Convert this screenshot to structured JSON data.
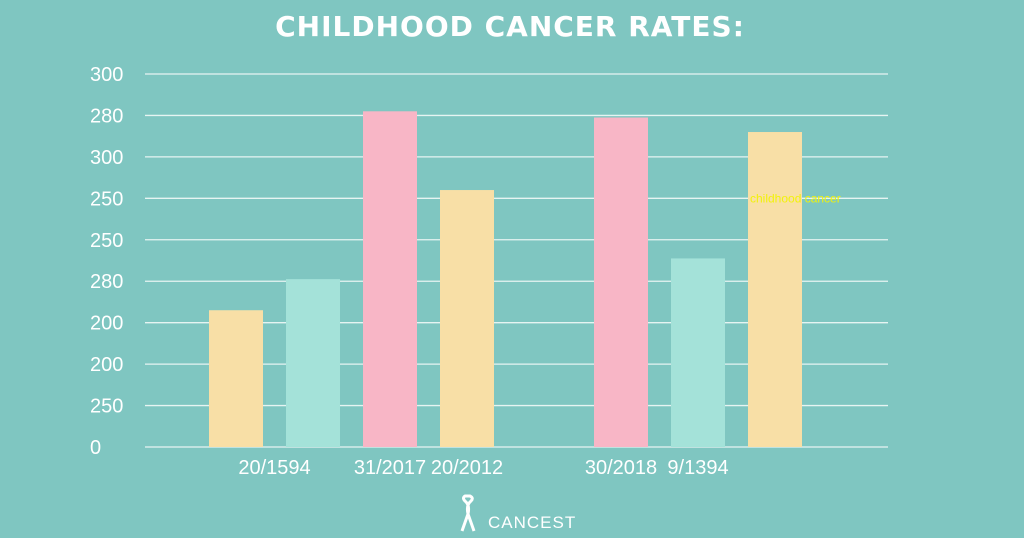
{
  "colors": {
    "background": "#7fc6c1",
    "grid": "#e6f4f2",
    "text": "#ffffff",
    "annotation": "#f2f20a",
    "bar_yellow": "#f8dfa6",
    "bar_mint": "#a4e2d9",
    "bar_pink": "#f8b6c6"
  },
  "footer": {
    "brand": "CANCEST",
    "logo_icon": "awareness-ribbon-icon"
  },
  "chart_data": {
    "type": "bar",
    "title": "CHILDHOOD CANCER RATES:",
    "y_tick_labels": [
      "300",
      "280",
      "300",
      "250",
      "250",
      "280",
      "200",
      "200",
      "250",
      "0"
    ],
    "y_tick_positions": [
      9,
      8,
      7,
      6,
      5,
      4,
      3,
      2,
      1,
      0
    ],
    "ylim": [
      0,
      9
    ],
    "x_tick_labels": [
      {
        "label": "20/1594",
        "at": 1.5
      },
      {
        "label": "31/2017",
        "at": 3
      },
      {
        "label": "20/2012",
        "at": 4
      },
      {
        "label": "30/2018",
        "at": 6
      },
      {
        "label": "9/1394",
        "at": 7
      }
    ],
    "bars": [
      {
        "slot": 1,
        "value": 3.3,
        "color": "bar_yellow"
      },
      {
        "slot": 2,
        "value": 4.05,
        "color": "bar_mint"
      },
      {
        "slot": 3,
        "value": 8.1,
        "color": "bar_pink"
      },
      {
        "slot": 4,
        "value": 6.2,
        "color": "bar_yellow"
      },
      {
        "slot": 6,
        "value": 7.95,
        "color": "bar_pink"
      },
      {
        "slot": 7,
        "value": 4.55,
        "color": "bar_mint"
      },
      {
        "slot": 8,
        "value": 7.6,
        "color": "bar_yellow"
      }
    ],
    "annotations": [
      {
        "text": "childhood cancer",
        "near_slot": 8,
        "at_value": 6
      }
    ],
    "xlabel": "",
    "ylabel": "",
    "grid": true,
    "legend": "none"
  }
}
